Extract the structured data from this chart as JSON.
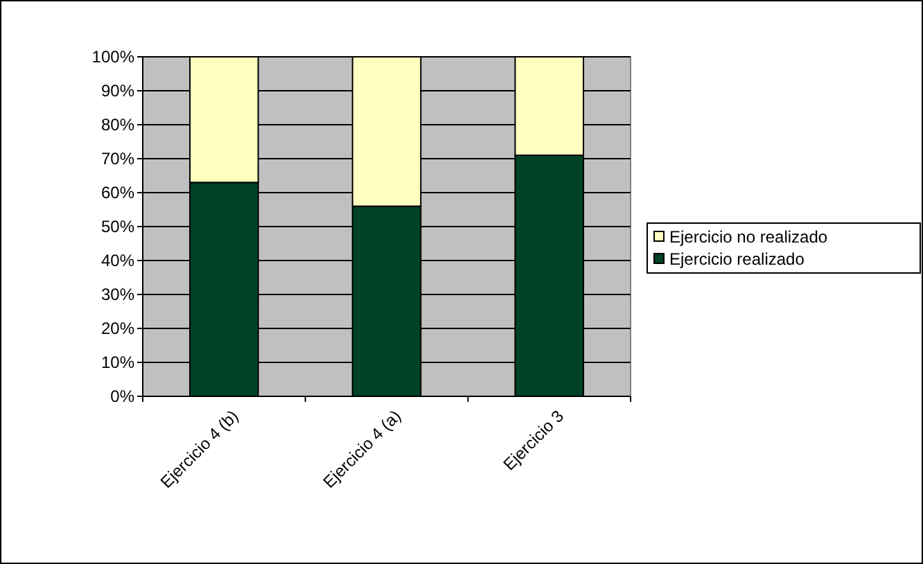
{
  "chart_data": {
    "type": "bar",
    "stacked": true,
    "categories": [
      "Ejercicio 4 (b)",
      "Ejercicio 4 (a)",
      "Ejercicio 3"
    ],
    "series": [
      {
        "name": "Ejercicio realizado",
        "color": "#004225",
        "values": [
          63,
          56,
          71
        ]
      },
      {
        "name": "Ejercicio no realizado",
        "color": "#ffffc0",
        "values": [
          37,
          44,
          29
        ]
      }
    ],
    "ylim": [
      0,
      100
    ],
    "yticks": [
      {
        "value": 0,
        "label": "0%"
      },
      {
        "value": 10,
        "label": "10%"
      },
      {
        "value": 20,
        "label": "20%"
      },
      {
        "value": 30,
        "label": "30%"
      },
      {
        "value": 40,
        "label": "40%"
      },
      {
        "value": 50,
        "label": "50%"
      },
      {
        "value": 60,
        "label": "60%"
      },
      {
        "value": 70,
        "label": "70%"
      },
      {
        "value": 80,
        "label": "80%"
      },
      {
        "value": 90,
        "label": "90%"
      },
      {
        "value": 100,
        "label": "100%"
      }
    ],
    "grid": "y",
    "legend": "right"
  }
}
